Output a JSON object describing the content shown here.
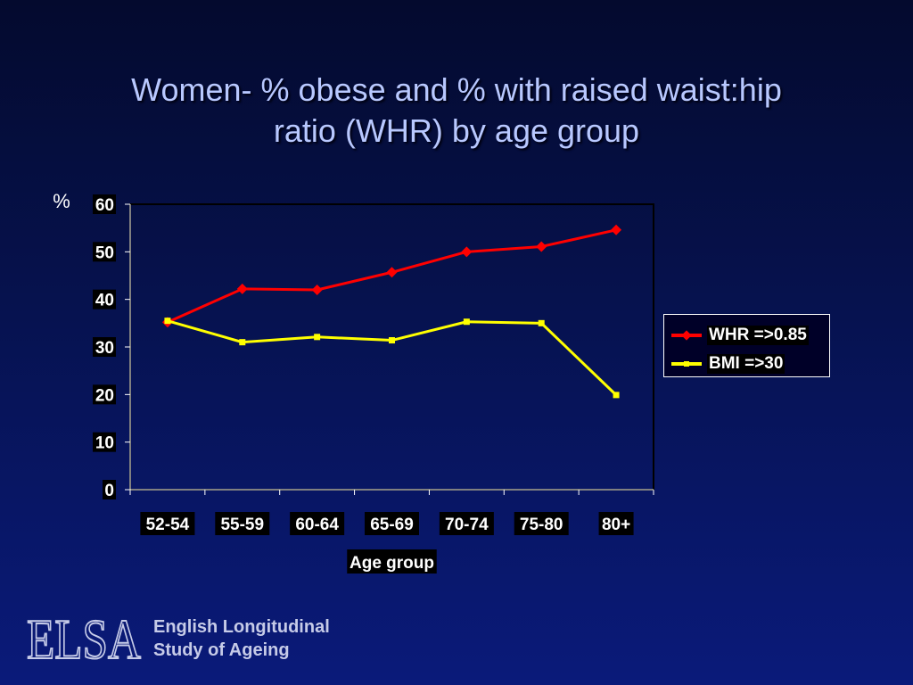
{
  "slide": {
    "title_line1": "Women- % obese and % with raised waist:hip",
    "title_line2": "ratio (WHR) by age group"
  },
  "chart_data": {
    "type": "line",
    "title": "Women- % obese and % with raised waist:hip ratio (WHR) by age group",
    "ylabel": "%",
    "xlabel": "Age group",
    "categories": [
      "52-54",
      "55-59",
      "60-64",
      "65-69",
      "70-74",
      "75-80",
      "80+"
    ],
    "ylim": [
      0,
      60
    ],
    "yticks": [
      0,
      10,
      20,
      30,
      40,
      50,
      60
    ],
    "grid": false,
    "legend_position": "right",
    "series": [
      {
        "name": "WHR =>0.85",
        "color": "#ff0000",
        "marker": "diamond",
        "values": [
          35.2,
          42.2,
          42.0,
          45.7,
          50.0,
          51.1,
          54.6
        ]
      },
      {
        "name": "BMI =>30",
        "color": "#ffff00",
        "marker": "square",
        "values": [
          35.5,
          31.0,
          32.1,
          31.4,
          35.3,
          35.0,
          19.9
        ]
      }
    ]
  },
  "logo": {
    "mark_text": "ELSA",
    "line1": "English Longitudinal",
    "line2": "Study of Ageing"
  },
  "colors": {
    "title": "#b8c8ff",
    "axis": "#ffffff",
    "background_top": "#040a2e",
    "background_bottom": "#0a1a7a"
  }
}
